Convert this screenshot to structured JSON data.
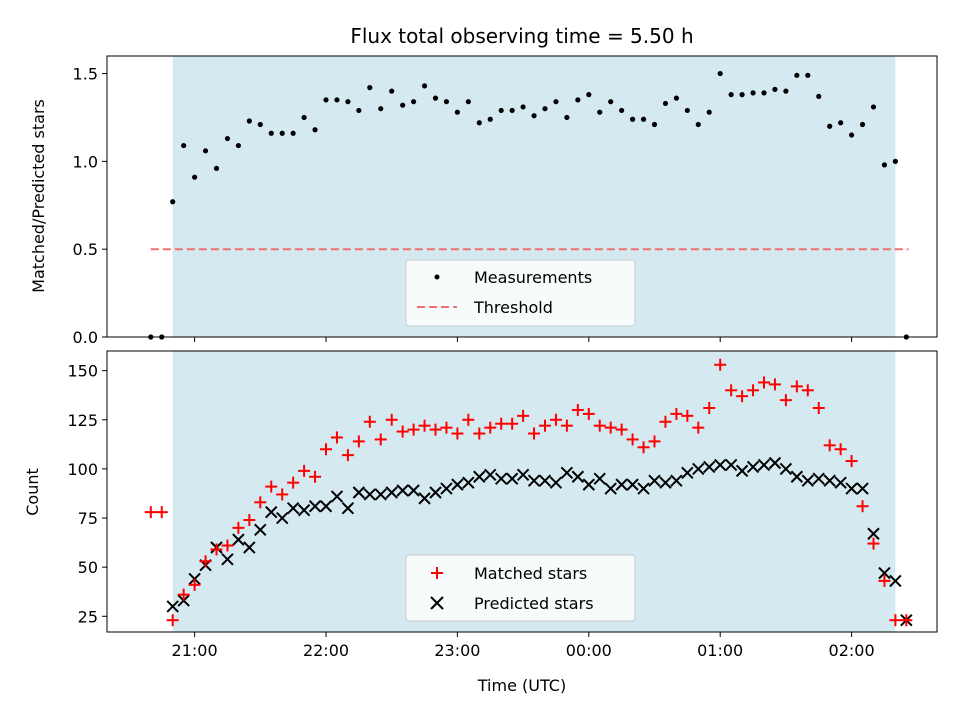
{
  "chart_data": [
    {
      "type": "scatter",
      "title": "Flux total observing time = 5.50 h",
      "xlabel": "",
      "ylabel": "Matched/Predicted stars",
      "ylim": [
        0,
        1.6
      ],
      "yticks": [
        "0.0",
        "0.5",
        "1.0",
        "1.5"
      ],
      "shaded_interval": {
        "start": "20:50",
        "end": "02:20",
        "color": "#d4eaf0"
      },
      "legend": {
        "placement": "bottom-center",
        "entries": [
          "Measurements",
          "Threshold"
        ]
      },
      "threshold": {
        "name": "Threshold",
        "value": 0.5,
        "x_start": "20:40",
        "x_end": "02:26",
        "color": "#f07070"
      },
      "series": [
        {
          "name": "Measurements",
          "color": "#000000",
          "x": [
            "20:40",
            "20:45",
            "20:50",
            "20:55",
            "21:00",
            "21:05",
            "21:10",
            "21:15",
            "21:20",
            "21:25",
            "21:30",
            "21:35",
            "21:40",
            "21:45",
            "21:50",
            "21:55",
            "22:00",
            "22:05",
            "22:10",
            "22:15",
            "22:20",
            "22:25",
            "22:30",
            "22:35",
            "22:40",
            "22:45",
            "22:50",
            "22:55",
            "23:00",
            "23:05",
            "23:10",
            "23:15",
            "23:20",
            "23:25",
            "23:30",
            "23:35",
            "23:40",
            "23:45",
            "23:50",
            "23:55",
            "00:00",
            "00:05",
            "00:10",
            "00:15",
            "00:20",
            "00:25",
            "00:30",
            "00:35",
            "00:40",
            "00:45",
            "00:50",
            "00:55",
            "01:00",
            "01:05",
            "01:10",
            "01:15",
            "01:20",
            "01:25",
            "01:30",
            "01:35",
            "01:40",
            "01:45",
            "01:50",
            "01:55",
            "02:00",
            "02:05",
            "02:10",
            "02:15",
            "02:20",
            "02:25"
          ],
          "y": [
            0.0,
            0.0,
            0.77,
            1.09,
            0.91,
            1.06,
            0.96,
            1.13,
            1.09,
            1.23,
            1.21,
            1.16,
            1.16,
            1.16,
            1.25,
            1.18,
            1.35,
            1.35,
            1.34,
            1.29,
            1.42,
            1.3,
            1.4,
            1.32,
            1.34,
            1.43,
            1.36,
            1.34,
            1.28,
            1.34,
            1.22,
            1.24,
            1.29,
            1.29,
            1.31,
            1.26,
            1.3,
            1.34,
            1.25,
            1.35,
            1.38,
            1.28,
            1.34,
            1.29,
            1.24,
            1.24,
            1.21,
            1.33,
            1.36,
            1.29,
            1.21,
            1.28,
            1.5,
            1.38,
            1.38,
            1.39,
            1.39,
            1.41,
            1.4,
            1.49,
            1.49,
            1.37,
            1.2,
            1.22,
            1.15,
            1.21,
            1.31,
            0.98,
            1.0,
            0.0
          ]
        }
      ]
    },
    {
      "type": "scatter",
      "title": "",
      "xlabel": "Time (UTC)",
      "ylabel": "Count",
      "ylim": [
        17,
        160
      ],
      "yticks": [
        "25",
        "50",
        "75",
        "100",
        "125",
        "150"
      ],
      "xticks": [
        "21:00",
        "22:00",
        "23:00",
        "00:00",
        "01:00",
        "02:00"
      ],
      "shaded_interval": {
        "start": "20:50",
        "end": "02:20",
        "color": "#d4eaf0"
      },
      "legend": {
        "placement": "bottom-center",
        "entries": [
          "Matched stars",
          "Predicted stars"
        ]
      },
      "x": [
        "20:40",
        "20:45",
        "20:50",
        "20:55",
        "21:00",
        "21:05",
        "21:10",
        "21:15",
        "21:20",
        "21:25",
        "21:30",
        "21:35",
        "21:40",
        "21:45",
        "21:50",
        "21:55",
        "22:00",
        "22:05",
        "22:10",
        "22:15",
        "22:20",
        "22:25",
        "22:30",
        "22:35",
        "22:40",
        "22:45",
        "22:50",
        "22:55",
        "23:00",
        "23:05",
        "23:10",
        "23:15",
        "23:20",
        "23:25",
        "23:30",
        "23:35",
        "23:40",
        "23:45",
        "23:50",
        "23:55",
        "00:00",
        "00:05",
        "00:10",
        "00:15",
        "00:20",
        "00:25",
        "00:30",
        "00:35",
        "00:40",
        "00:45",
        "00:50",
        "00:55",
        "01:00",
        "01:05",
        "01:10",
        "01:15",
        "01:20",
        "01:25",
        "01:30",
        "01:35",
        "01:40",
        "01:45",
        "01:50",
        "01:55",
        "02:00",
        "02:05",
        "02:10",
        "02:15",
        "02:20",
        "02:25"
      ],
      "series": [
        {
          "name": "Matched stars",
          "color": "#ff0000",
          "marker": "+",
          "values": [
            78,
            78,
            23,
            36,
            41,
            53,
            59,
            61,
            70,
            74,
            83,
            91,
            87,
            93,
            99,
            96,
            110,
            116,
            107,
            114,
            124,
            115,
            125,
            119,
            120,
            122,
            120,
            121,
            118,
            125,
            118,
            121,
            123,
            123,
            127,
            118,
            122,
            125,
            122,
            130,
            128,
            122,
            121,
            120,
            115,
            111,
            114,
            124,
            128,
            127,
            121,
            131,
            153,
            140,
            137,
            140,
            144,
            143,
            135,
            142,
            140,
            131,
            112,
            110,
            104,
            81,
            62,
            43,
            23,
            23
          ]
        },
        {
          "name": "Predicted stars",
          "color": "#000000",
          "marker": "x",
          "values": [
            null,
            null,
            30,
            33,
            44,
            51,
            60,
            54,
            64,
            60,
            69,
            78,
            75,
            80,
            79,
            81,
            81,
            86,
            80,
            88,
            87,
            87,
            88,
            89,
            89,
            85,
            88,
            90,
            92,
            93,
            96,
            97,
            95,
            95,
            97,
            94,
            94,
            93,
            98,
            96,
            92,
            95,
            90,
            92,
            92,
            90,
            94,
            93,
            94,
            98,
            100,
            101,
            102,
            102,
            99,
            101,
            102,
            103,
            100,
            96,
            94,
            95,
            94,
            93,
            90,
            90,
            67,
            47,
            43,
            23
          ]
        }
      ]
    }
  ]
}
